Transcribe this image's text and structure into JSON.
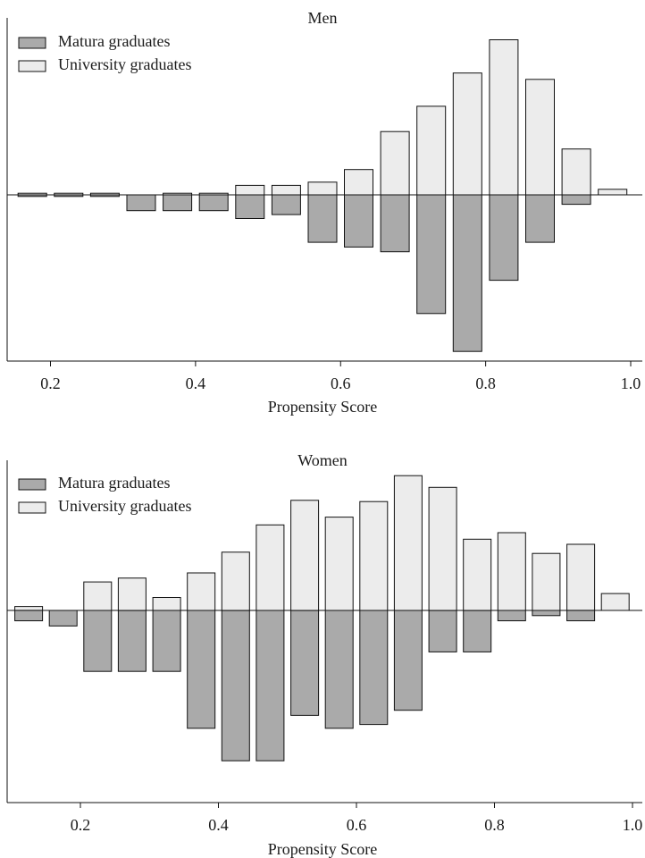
{
  "chart_data": [
    {
      "type": "bar",
      "title": "Men",
      "xlabel": "Propensity Score",
      "ylabel": "",
      "x_ticks": [
        "0.2",
        "0.4",
        "0.6",
        "0.8",
        "1.0"
      ],
      "xlim": [
        0.15,
        1.01
      ],
      "legend_position": "top-left",
      "series": [
        {
          "name": "Matura graduates",
          "color": "#aaaaaa",
          "direction": "below",
          "points": [
            {
              "x": 0.175,
              "y": 0.2
            },
            {
              "x": 0.225,
              "y": 0.2
            },
            {
              "x": 0.275,
              "y": 0.2
            },
            {
              "x": 0.325,
              "y": 2.0
            },
            {
              "x": 0.375,
              "y": 2.0
            },
            {
              "x": 0.425,
              "y": 2.0
            },
            {
              "x": 0.475,
              "y": 3.0
            },
            {
              "x": 0.525,
              "y": 2.5
            },
            {
              "x": 0.575,
              "y": 6.0
            },
            {
              "x": 0.625,
              "y": 6.6
            },
            {
              "x": 0.675,
              "y": 7.2
            },
            {
              "x": 0.725,
              "y": 15.0
            },
            {
              "x": 0.775,
              "y": 19.8
            },
            {
              "x": 0.825,
              "y": 10.8
            },
            {
              "x": 0.875,
              "y": 6.0
            },
            {
              "x": 0.925,
              "y": 1.2
            }
          ]
        },
        {
          "name": "University graduates",
          "color": "#ececec",
          "direction": "above",
          "points": [
            {
              "x": 0.175,
              "y": 0.2
            },
            {
              "x": 0.225,
              "y": 0.2
            },
            {
              "x": 0.275,
              "y": 0.2
            },
            {
              "x": 0.375,
              "y": 0.2
            },
            {
              "x": 0.425,
              "y": 0.2
            },
            {
              "x": 0.475,
              "y": 1.2
            },
            {
              "x": 0.525,
              "y": 1.2
            },
            {
              "x": 0.575,
              "y": 1.6
            },
            {
              "x": 0.625,
              "y": 3.2
            },
            {
              "x": 0.675,
              "y": 8.0
            },
            {
              "x": 0.725,
              "y": 11.2
            },
            {
              "x": 0.775,
              "y": 15.4
            },
            {
              "x": 0.825,
              "y": 19.6
            },
            {
              "x": 0.875,
              "y": 14.6
            },
            {
              "x": 0.925,
              "y": 5.8
            },
            {
              "x": 0.975,
              "y": 0.7
            }
          ]
        }
      ]
    },
    {
      "type": "bar",
      "title": "Women",
      "xlabel": "Propensity Score",
      "ylabel": "",
      "x_ticks": [
        "0.2",
        "0.4",
        "0.6",
        "0.8",
        "1.0"
      ],
      "xlim": [
        0.1,
        1.01
      ],
      "legend_position": "top-left",
      "series": [
        {
          "name": "Matura graduates",
          "color": "#aaaaaa",
          "direction": "below",
          "points": [
            {
              "x": 0.125,
              "y": 0.8
            },
            {
              "x": 0.175,
              "y": 1.2
            },
            {
              "x": 0.225,
              "y": 4.7
            },
            {
              "x": 0.275,
              "y": 4.7
            },
            {
              "x": 0.325,
              "y": 4.7
            },
            {
              "x": 0.375,
              "y": 9.1
            },
            {
              "x": 0.425,
              "y": 11.6
            },
            {
              "x": 0.475,
              "y": 11.6
            },
            {
              "x": 0.525,
              "y": 8.1
            },
            {
              "x": 0.575,
              "y": 9.1
            },
            {
              "x": 0.625,
              "y": 8.8
            },
            {
              "x": 0.675,
              "y": 7.7
            },
            {
              "x": 0.725,
              "y": 3.2
            },
            {
              "x": 0.775,
              "y": 3.2
            },
            {
              "x": 0.825,
              "y": 0.8
            },
            {
              "x": 0.875,
              "y": 0.4
            },
            {
              "x": 0.925,
              "y": 0.8
            }
          ]
        },
        {
          "name": "University graduates",
          "color": "#ececec",
          "direction": "above",
          "points": [
            {
              "x": 0.125,
              "y": 0.3
            },
            {
              "x": 0.225,
              "y": 2.2
            },
            {
              "x": 0.275,
              "y": 2.5
            },
            {
              "x": 0.325,
              "y": 1.0
            },
            {
              "x": 0.375,
              "y": 2.9
            },
            {
              "x": 0.425,
              "y": 4.5
            },
            {
              "x": 0.475,
              "y": 6.6
            },
            {
              "x": 0.525,
              "y": 8.5
            },
            {
              "x": 0.575,
              "y": 7.2
            },
            {
              "x": 0.625,
              "y": 8.4
            },
            {
              "x": 0.675,
              "y": 10.4
            },
            {
              "x": 0.725,
              "y": 9.5
            },
            {
              "x": 0.775,
              "y": 5.5
            },
            {
              "x": 0.825,
              "y": 6.0
            },
            {
              "x": 0.875,
              "y": 4.4
            },
            {
              "x": 0.925,
              "y": 5.1
            },
            {
              "x": 0.975,
              "y": 1.3
            }
          ]
        }
      ]
    }
  ]
}
